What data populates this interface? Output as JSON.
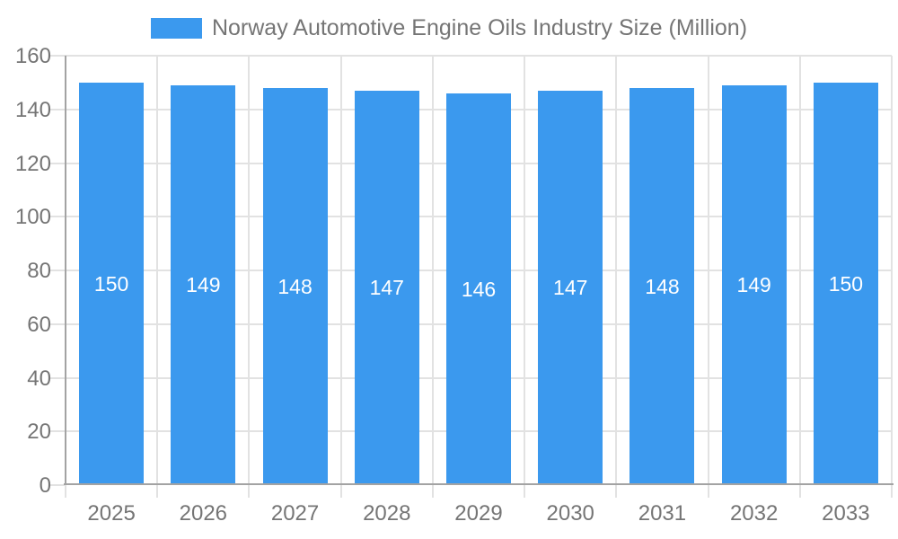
{
  "chart_data": {
    "type": "bar",
    "title": "Norway Automotive Engine Oils Industry Size (Million)",
    "legend_entries": [
      "Norway Automotive Engine Oils Industry Size (Million)"
    ],
    "legend_position": "top",
    "categories": [
      "2025",
      "2026",
      "2027",
      "2028",
      "2029",
      "2030",
      "2031",
      "2032",
      "2033"
    ],
    "values": [
      150,
      149,
      148,
      147,
      146,
      147,
      148,
      149,
      150
    ],
    "xlabel": "",
    "ylabel": "",
    "ylim": [
      0,
      160
    ],
    "ytick_step": 20,
    "grid": true,
    "colors": {
      "bar": "#3B99EE",
      "bar_label": "#FFFFFF",
      "axis_line": "#A3A3A3",
      "grid_line": "#E2E2E2",
      "text": "#757575",
      "background": "#FFFFFF"
    }
  }
}
